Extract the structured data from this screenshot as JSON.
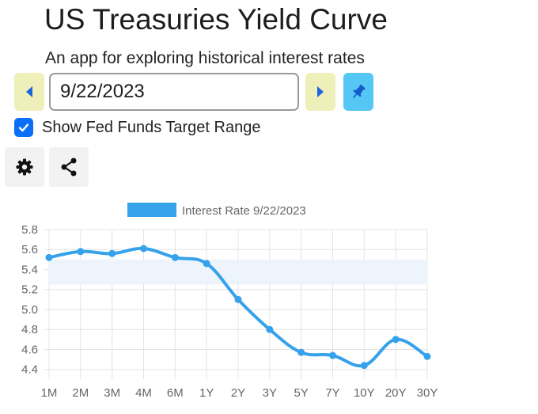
{
  "app": {
    "title": "US Treasuries Yield Curve",
    "subtitle": "An app for exploring historical interest rates"
  },
  "date_picker": {
    "value": "9/22/2023",
    "prev_icon": "caret-left-icon",
    "next_icon": "caret-right-icon",
    "pin_icon": "pin-icon"
  },
  "options": {
    "show_fed_funds_label": "Show Fed Funds Target Range",
    "show_fed_funds_checked": true
  },
  "toolbar": {
    "settings_icon": "gear-icon",
    "share_icon": "share-icon"
  },
  "colors": {
    "nav_button": "#eeefb9",
    "pin_button": "#55c7f4",
    "checkbox": "#0b6ef7",
    "series": "#36a2eb",
    "fed_band": "#eef4fc"
  },
  "chart_data": {
    "type": "line",
    "categories": [
      "1M",
      "2M",
      "3M",
      "4M",
      "6M",
      "1Y",
      "2Y",
      "3Y",
      "5Y",
      "7Y",
      "10Y",
      "20Y",
      "30Y"
    ],
    "series": [
      {
        "name": "Interest Rate 9/22/2023",
        "values": [
          5.52,
          5.58,
          5.56,
          5.61,
          5.52,
          5.46,
          5.1,
          4.8,
          4.57,
          4.54,
          4.44,
          4.7,
          4.53
        ]
      }
    ],
    "fed_funds_range": [
      5.25,
      5.5
    ],
    "yticks": [
      "5.8",
      "5.6",
      "5.4",
      "5.2",
      "5.0",
      "4.8",
      "4.6",
      "4.4"
    ],
    "ylim": [
      4.35,
      5.8
    ],
    "legend_position": "top",
    "grid": true
  }
}
